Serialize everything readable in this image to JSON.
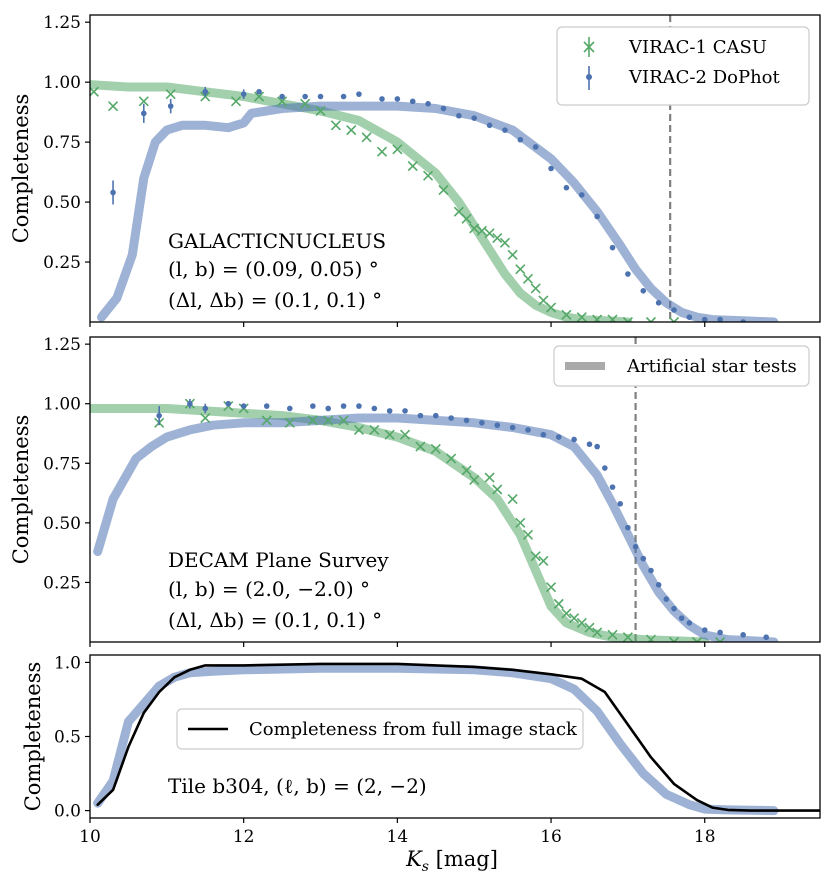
{
  "xlabel": "K_s [mag]",
  "xticks": [
    10,
    12,
    14,
    16,
    18
  ],
  "colors": {
    "casu": "#55a868",
    "dophot": "#4c72b0",
    "ast": "#aaaaaa",
    "stack": "#000000",
    "vline": "#808080"
  },
  "chart_data": [
    {
      "type": "line",
      "title": "",
      "xlabel": "",
      "ylabel": "Completeness",
      "xlim": [
        10,
        19.5
      ],
      "ylim": [
        0,
        1.28
      ],
      "yticks": [
        0.25,
        0.5,
        0.75,
        1.0,
        1.25
      ],
      "ytick_labels": [
        "0.25",
        "0.50",
        "0.75",
        "1.00",
        "1.25"
      ],
      "annotations": [
        "GALACTICNUCLEUS",
        "(l, b) = (0.09, 0.05) °",
        "(Δl, Δb) = (0.1, 0.1) °"
      ],
      "vline": 17.55,
      "legend": {
        "position": "top-right",
        "entries": [
          "VIRAC-1 CASU",
          "VIRAC-2 DoPhot"
        ]
      },
      "series": [
        {
          "name": "VIRAC-1 CASU AST",
          "kind": "thick",
          "color": "casu",
          "x": [
            10.0,
            10.5,
            11.0,
            11.5,
            12.0,
            12.5,
            13.0,
            13.5,
            14.0,
            14.5,
            14.8,
            15.0,
            15.2,
            15.4,
            15.6,
            15.8,
            16.0,
            16.2,
            16.4,
            16.7,
            17.0
          ],
          "values": [
            0.99,
            0.98,
            0.98,
            0.96,
            0.94,
            0.91,
            0.88,
            0.84,
            0.75,
            0.62,
            0.5,
            0.4,
            0.3,
            0.2,
            0.12,
            0.07,
            0.04,
            0.02,
            0.01,
            0.005,
            0.0
          ]
        },
        {
          "name": "VIRAC-2 DoPhot AST",
          "kind": "thick",
          "color": "dophot",
          "x": [
            10.15,
            10.35,
            10.55,
            10.7,
            10.85,
            11.0,
            11.2,
            11.5,
            11.8,
            12.0,
            12.1,
            12.5,
            13.0,
            13.5,
            14.0,
            14.5,
            15.0,
            15.5,
            16.0,
            16.3,
            16.6,
            16.9,
            17.1,
            17.3,
            17.5,
            17.7,
            17.9,
            18.1,
            18.5,
            18.9
          ],
          "values": [
            0.02,
            0.1,
            0.28,
            0.6,
            0.75,
            0.8,
            0.82,
            0.82,
            0.81,
            0.83,
            0.87,
            0.89,
            0.9,
            0.9,
            0.9,
            0.89,
            0.86,
            0.8,
            0.68,
            0.58,
            0.46,
            0.32,
            0.22,
            0.14,
            0.08,
            0.04,
            0.02,
            0.01,
            0.005,
            0.0
          ]
        },
        {
          "name": "VIRAC-1 CASU",
          "kind": "cross",
          "color": "casu",
          "x": [
            10.05,
            10.3,
            10.7,
            11.05,
            11.5,
            11.9,
            12.2,
            12.5,
            12.8,
            13.0,
            13.2,
            13.4,
            13.6,
            13.8,
            14.0,
            14.2,
            14.4,
            14.6,
            14.8,
            14.9,
            15.0,
            15.1,
            15.2,
            15.3,
            15.4,
            15.5,
            15.6,
            15.7,
            15.8,
            15.9,
            16.0,
            16.2,
            16.4,
            16.6,
            16.8,
            17.0,
            17.3,
            17.6
          ],
          "values": [
            0.96,
            0.9,
            0.92,
            0.95,
            0.94,
            0.92,
            0.94,
            0.92,
            0.91,
            0.88,
            0.82,
            0.8,
            0.77,
            0.71,
            0.72,
            0.65,
            0.61,
            0.55,
            0.46,
            0.43,
            0.39,
            0.38,
            0.37,
            0.35,
            0.33,
            0.28,
            0.22,
            0.18,
            0.14,
            0.09,
            0.06,
            0.03,
            0.02,
            0.01,
            0.01,
            0.0,
            0.0,
            0.0
          ]
        },
        {
          "name": "VIRAC-2 DoPhot",
          "kind": "dot",
          "color": "dophot",
          "x": [
            10.3,
            10.7,
            11.05,
            11.5,
            12.0,
            12.2,
            12.5,
            12.8,
            13.0,
            13.3,
            13.5,
            13.8,
            14.0,
            14.2,
            14.4,
            14.6,
            14.8,
            15.0,
            15.2,
            15.4,
            15.6,
            15.8,
            16.0,
            16.2,
            16.4,
            16.6,
            16.8,
            17.0,
            17.2,
            17.4,
            17.6,
            17.8,
            18.0,
            18.2,
            18.5
          ],
          "values": [
            0.54,
            0.87,
            0.9,
            0.96,
            0.95,
            0.96,
            0.94,
            0.94,
            0.94,
            0.94,
            0.95,
            0.93,
            0.93,
            0.92,
            0.91,
            0.89,
            0.86,
            0.85,
            0.82,
            0.8,
            0.76,
            0.73,
            0.64,
            0.56,
            0.53,
            0.44,
            0.31,
            0.2,
            0.13,
            0.08,
            0.05,
            0.02,
            0.01,
            0.01,
            0.0
          ],
          "err": [
            0.05,
            0.04,
            0.03,
            0.02,
            0.02,
            0.01,
            0.01,
            0.01,
            0.01,
            0.01,
            0.01,
            0.01,
            0.01,
            0.01,
            0.01,
            0.01,
            0.01,
            0.01,
            0.01,
            0.01,
            0.01,
            0.01,
            0.01,
            0.01,
            0.01,
            0.01,
            0.01,
            0.01,
            0.01,
            0.01,
            0.01,
            0.01,
            0.01,
            0.01,
            0.0
          ]
        }
      ]
    },
    {
      "type": "line",
      "title": "",
      "xlabel": "",
      "ylabel": "Completeness",
      "xlim": [
        10,
        19.5
      ],
      "ylim": [
        0,
        1.28
      ],
      "yticks": [
        0.25,
        0.5,
        0.75,
        1.0,
        1.25
      ],
      "ytick_labels": [
        "0.25",
        "0.50",
        "0.75",
        "1.00",
        "1.25"
      ],
      "annotations": [
        "DECAM Plane Survey",
        "(l, b) = (2.0, −2.0) °",
        "(Δl, Δb) = (0.1, 0.1) °"
      ],
      "vline": 17.1,
      "legend": {
        "position": "top-right",
        "entries": [
          "Artificial star tests"
        ]
      },
      "series": [
        {
          "name": "VIRAC-1 CASU AST",
          "kind": "thick",
          "color": "casu",
          "x": [
            10.0,
            10.5,
            11.0,
            11.5,
            12.0,
            12.5,
            13.0,
            13.5,
            14.0,
            14.5,
            15.0,
            15.3,
            15.6,
            15.8,
            16.0,
            16.2,
            16.5,
            16.8,
            17.2,
            17.6,
            18.0
          ],
          "values": [
            0.98,
            0.98,
            0.98,
            0.97,
            0.96,
            0.95,
            0.93,
            0.9,
            0.86,
            0.8,
            0.69,
            0.6,
            0.45,
            0.3,
            0.15,
            0.08,
            0.04,
            0.02,
            0.01,
            0.005,
            0.0
          ]
        },
        {
          "name": "VIRAC-2 DoPhot AST",
          "kind": "thick",
          "color": "dophot",
          "x": [
            10.1,
            10.3,
            10.6,
            10.8,
            11.0,
            11.3,
            11.6,
            12.0,
            12.5,
            13.0,
            13.5,
            14.0,
            14.5,
            15.0,
            15.5,
            16.0,
            16.3,
            16.6,
            16.8,
            17.0,
            17.2,
            17.4,
            17.6,
            17.8,
            18.0,
            18.3,
            18.6,
            18.9
          ],
          "values": [
            0.38,
            0.6,
            0.77,
            0.82,
            0.86,
            0.89,
            0.91,
            0.92,
            0.92,
            0.93,
            0.94,
            0.94,
            0.93,
            0.92,
            0.9,
            0.87,
            0.82,
            0.7,
            0.58,
            0.45,
            0.32,
            0.21,
            0.13,
            0.07,
            0.03,
            0.01,
            0.005,
            0.0
          ]
        },
        {
          "name": "VIRAC-1 CASU",
          "kind": "cross",
          "color": "casu",
          "x": [
            10.9,
            11.3,
            11.5,
            11.8,
            12.0,
            12.3,
            12.6,
            12.9,
            13.1,
            13.3,
            13.5,
            13.7,
            13.9,
            14.1,
            14.3,
            14.5,
            14.7,
            14.9,
            15.0,
            15.2,
            15.3,
            15.5,
            15.6,
            15.7,
            15.8,
            15.9,
            16.0,
            16.1,
            16.2,
            16.3,
            16.4,
            16.5,
            16.6,
            16.8,
            17.0,
            17.3,
            17.6,
            17.9,
            18.2
          ],
          "values": [
            0.92,
            1.0,
            0.94,
            0.99,
            0.98,
            0.93,
            0.92,
            0.93,
            0.93,
            0.93,
            0.89,
            0.89,
            0.87,
            0.87,
            0.82,
            0.81,
            0.77,
            0.72,
            0.68,
            0.69,
            0.64,
            0.6,
            0.5,
            0.45,
            0.36,
            0.34,
            0.23,
            0.16,
            0.12,
            0.1,
            0.08,
            0.06,
            0.04,
            0.03,
            0.02,
            0.01,
            0.0,
            0.0,
            0.0
          ]
        },
        {
          "name": "VIRAC-2 DoPhot",
          "kind": "dot",
          "color": "dophot",
          "x": [
            10.9,
            11.3,
            11.5,
            11.8,
            12.0,
            12.3,
            12.6,
            12.9,
            13.1,
            13.3,
            13.5,
            13.7,
            13.9,
            14.1,
            14.3,
            14.5,
            14.7,
            14.9,
            15.1,
            15.3,
            15.5,
            15.7,
            15.9,
            16.1,
            16.3,
            16.5,
            16.6,
            16.7,
            16.8,
            16.9,
            17.0,
            17.1,
            17.2,
            17.3,
            17.4,
            17.5,
            17.6,
            17.7,
            17.8,
            18.0,
            18.2,
            18.5,
            18.8
          ],
          "values": [
            0.95,
            1.0,
            0.98,
            1.0,
            0.99,
            0.99,
            0.98,
            0.99,
            0.98,
            0.99,
            0.99,
            0.98,
            0.97,
            0.97,
            0.95,
            0.95,
            0.94,
            0.93,
            0.92,
            0.91,
            0.9,
            0.89,
            0.87,
            0.86,
            0.85,
            0.83,
            0.82,
            0.73,
            0.65,
            0.58,
            0.48,
            0.4,
            0.35,
            0.3,
            0.24,
            0.18,
            0.14,
            0.1,
            0.08,
            0.05,
            0.04,
            0.03,
            0.02
          ],
          "err": [
            0.04,
            0.02,
            0.02,
            0.01,
            0.01,
            0.01,
            0.01,
            0.01,
            0.01,
            0.01,
            0.01,
            0.01,
            0.01,
            0.01,
            0.01,
            0.01,
            0.01,
            0.01,
            0.01,
            0.01,
            0.01,
            0.01,
            0.01,
            0.01,
            0.01,
            0.01,
            0.01,
            0.01,
            0.01,
            0.01,
            0.01,
            0.01,
            0.01,
            0.01,
            0.01,
            0.01,
            0.01,
            0.01,
            0.01,
            0.01,
            0.01,
            0.01,
            0.01
          ]
        }
      ]
    },
    {
      "type": "line",
      "title": "",
      "xlabel": "K_s [mag]",
      "ylabel": "Completeness",
      "xlim": [
        10,
        19.5
      ],
      "ylim": [
        -0.05,
        1.05
      ],
      "yticks": [
        0.0,
        0.5,
        1.0
      ],
      "ytick_labels": [
        "0.0",
        "0.5",
        "1.0"
      ],
      "annotations": [
        "Tile b304, (ℓ, b) = (2, −2)"
      ],
      "legend": {
        "position": "center-left",
        "entries": [
          "Completeness from full image stack"
        ]
      },
      "series": [
        {
          "name": "VIRAC-2 DoPhot AST",
          "kind": "thick",
          "color": "dophot",
          "x": [
            10.1,
            10.3,
            10.5,
            10.7,
            10.9,
            11.1,
            11.3,
            11.6,
            12.0,
            13.0,
            14.0,
            15.0,
            15.5,
            16.0,
            16.3,
            16.6,
            16.9,
            17.2,
            17.5,
            17.8,
            18.0,
            18.3,
            18.9
          ],
          "values": [
            0.05,
            0.2,
            0.6,
            0.72,
            0.84,
            0.9,
            0.93,
            0.94,
            0.95,
            0.96,
            0.96,
            0.95,
            0.93,
            0.89,
            0.82,
            0.67,
            0.45,
            0.25,
            0.11,
            0.04,
            0.01,
            0.005,
            0.0
          ]
        },
        {
          "name": "Completeness from full image stack",
          "kind": "line",
          "color": "stack",
          "x": [
            10.1,
            10.3,
            10.5,
            10.7,
            10.9,
            11.1,
            11.3,
            11.5,
            12.0,
            13.0,
            14.0,
            15.0,
            15.5,
            16.0,
            16.4,
            16.7,
            17.0,
            17.3,
            17.6,
            17.9,
            18.1,
            18.3,
            18.6,
            19.5
          ],
          "values": [
            0.04,
            0.14,
            0.43,
            0.66,
            0.8,
            0.9,
            0.95,
            0.98,
            0.98,
            0.99,
            0.99,
            0.97,
            0.95,
            0.92,
            0.89,
            0.8,
            0.58,
            0.36,
            0.18,
            0.07,
            0.02,
            0.005,
            0.0,
            0.0
          ]
        }
      ]
    }
  ]
}
